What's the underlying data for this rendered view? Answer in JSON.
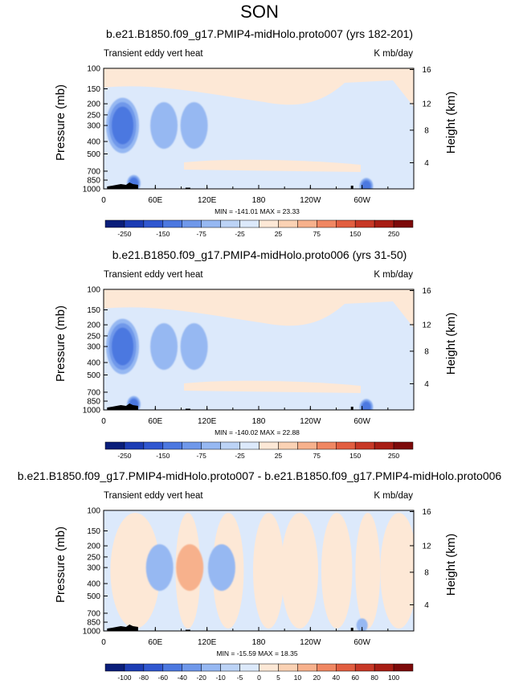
{
  "page_title": "SON",
  "chart_data": [
    {
      "type": "heatmap",
      "title": "b.e21.B1850.f09_g17.PMIP4-midHolo.proto007 (yrs 182-201)",
      "left_label": "Transient eddy vert heat",
      "right_label": "K mb/day",
      "ylabel": "Pressure (mb)",
      "y2label": "Height (km)",
      "x_ticks": [
        "0",
        "60E",
        "120E",
        "180",
        "120W",
        "60W"
      ],
      "y_ticks": [
        "100",
        "150",
        "200",
        "250",
        "300",
        "400",
        "500",
        "700",
        "850",
        "1000"
      ],
      "y2_ticks": [
        "4",
        "8",
        "12",
        "16"
      ],
      "stats": "MIN = -141.01  MAX = 23.33",
      "colorbar_labels": [
        "-250",
        "-150",
        "-75",
        "-25",
        "25",
        "75",
        "150",
        "250"
      ],
      "colorbar_colors": [
        "#0a1e7a",
        "#1c3cb4",
        "#3057d0",
        "#4c78e0",
        "#6f98ea",
        "#96b8f2",
        "#bcd3f6",
        "#dce9fb",
        "#fde8d6",
        "#fbd2b4",
        "#f7b18c",
        "#f08762",
        "#e25e40",
        "#c83826",
        "#a81d14",
        "#7d0a0a"
      ],
      "x": [
        0,
        60,
        120,
        180,
        240,
        300
      ],
      "levels_mb": [
        100,
        150,
        200,
        250,
        300,
        400,
        500,
        700,
        850,
        1000
      ],
      "features": [
        {
          "lon": 22,
          "p": 300,
          "value": -100
        },
        {
          "lon": 70,
          "p": 300,
          "value": -50
        },
        {
          "lon": 105,
          "p": 300,
          "value": -60
        },
        {
          "lon": 137,
          "p": 300,
          "value": -40
        },
        {
          "lon": 295,
          "p": 300,
          "value": -40
        },
        {
          "lon": 35,
          "p": 900,
          "value": -100
        },
        {
          "lon": 305,
          "p": 950,
          "value": -141
        }
      ]
    },
    {
      "type": "heatmap",
      "title": "b.e21.B1850.f09_g17.PMIP4-midHolo.proto006 (yrs 31-50)",
      "left_label": "Transient eddy vert heat",
      "right_label": "K mb/day",
      "ylabel": "Pressure (mb)",
      "y2label": "Height (km)",
      "x_ticks": [
        "0",
        "60E",
        "120E",
        "180",
        "120W",
        "60W"
      ],
      "y_ticks": [
        "100",
        "150",
        "200",
        "250",
        "300",
        "400",
        "500",
        "700",
        "850",
        "1000"
      ],
      "y2_ticks": [
        "4",
        "8",
        "12",
        "16"
      ],
      "stats": "MIN = -140.02  MAX = 22.88",
      "colorbar_labels": [
        "-250",
        "-150",
        "-75",
        "-25",
        "25",
        "75",
        "150",
        "250"
      ],
      "colorbar_colors": [
        "#0a1e7a",
        "#1c3cb4",
        "#3057d0",
        "#4c78e0",
        "#6f98ea",
        "#96b8f2",
        "#bcd3f6",
        "#dce9fb",
        "#fde8d6",
        "#fbd2b4",
        "#f7b18c",
        "#f08762",
        "#e25e40",
        "#c83826",
        "#a81d14",
        "#7d0a0a"
      ],
      "x": [
        0,
        60,
        120,
        180,
        240,
        300
      ],
      "levels_mb": [
        100,
        150,
        200,
        250,
        300,
        400,
        500,
        700,
        850,
        1000
      ],
      "features": [
        {
          "lon": 22,
          "p": 300,
          "value": -100
        },
        {
          "lon": 70,
          "p": 300,
          "value": -55
        },
        {
          "lon": 105,
          "p": 300,
          "value": -65
        },
        {
          "lon": 137,
          "p": 300,
          "value": -40
        },
        {
          "lon": 295,
          "p": 300,
          "value": -40
        },
        {
          "lon": 35,
          "p": 900,
          "value": -100
        },
        {
          "lon": 305,
          "p": 950,
          "value": -140
        }
      ]
    },
    {
      "type": "heatmap",
      "title": "b.e21.B1850.f09_g17.PMIP4-midHolo.proto007 - b.e21.B1850.f09_g17.PMIP4-midHolo.proto006",
      "left_label": "Transient eddy vert heat",
      "right_label": "K mb/day",
      "ylabel": "Pressure (mb)",
      "y2label": "Height (km)",
      "x_ticks": [
        "0",
        "60E",
        "120E",
        "180",
        "120W",
        "60W"
      ],
      "y_ticks": [
        "100",
        "150",
        "200",
        "250",
        "300",
        "400",
        "500",
        "700",
        "850",
        "1000"
      ],
      "y2_ticks": [
        "4",
        "8",
        "12",
        "16"
      ],
      "stats": "MIN = -15.59  MAX = 18.35",
      "colorbar_labels": [
        "-100",
        "-80",
        "-60",
        "-40",
        "-20",
        "-10",
        "-5",
        "0",
        "5",
        "10",
        "20",
        "40",
        "60",
        "80",
        "100"
      ],
      "colorbar_colors": [
        "#0a1e7a",
        "#1c3cb4",
        "#3057d0",
        "#4c78e0",
        "#6f98ea",
        "#96b8f2",
        "#bcd3f6",
        "#dce9fb",
        "#fde8d6",
        "#fbd2b4",
        "#f7b18c",
        "#f08762",
        "#e25e40",
        "#c83826",
        "#a81d14",
        "#7d0a0a"
      ],
      "x": [
        0,
        60,
        120,
        180,
        240,
        300
      ],
      "levels_mb": [
        100,
        150,
        200,
        250,
        300,
        400,
        500,
        700,
        850,
        1000
      ],
      "features": [
        {
          "lon": 30,
          "p": 350,
          "value": -8
        },
        {
          "lon": 65,
          "p": 300,
          "value": -10
        },
        {
          "lon": 100,
          "p": 300,
          "value": 15
        },
        {
          "lon": 120,
          "p": 350,
          "value": 8
        },
        {
          "lon": 137,
          "p": 300,
          "value": -15
        },
        {
          "lon": 305,
          "p": 700,
          "value": 8
        },
        {
          "lon": 300,
          "p": 900,
          "value": -15
        }
      ]
    }
  ]
}
